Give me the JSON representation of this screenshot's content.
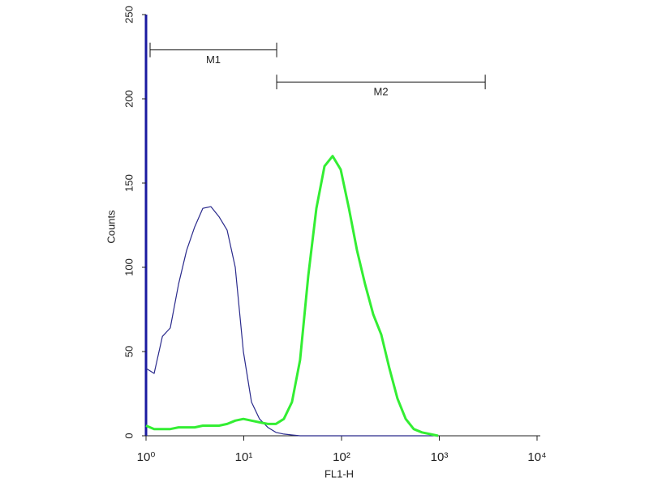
{
  "chart_data": {
    "type": "line",
    "x_label": "FL1-H",
    "y_label": "Counts",
    "x": [
      1,
      1.21,
      1.47,
      1.77,
      2.15,
      2.6,
      3.15,
      3.81,
      4.61,
      5.58,
      6.76,
      8.18,
      9.9,
      12,
      14.5,
      17.6,
      21.3,
      25.7,
      31.1,
      37.7,
      45.7,
      55.3,
      66.9,
      81,
      98.1,
      119,
      144,
      174,
      211,
      255,
      309,
      374,
      453,
      548,
      664,
      803,
      973
    ],
    "series": [
      {
        "color": "#2a2a8c",
        "values": [
          40,
          37,
          59,
          64,
          90,
          110,
          124,
          135,
          136,
          130,
          122,
          100,
          50,
          20,
          10,
          5,
          2,
          1,
          0.5,
          0,
          0,
          0,
          0,
          0,
          0,
          0,
          0,
          0,
          0,
          0,
          0,
          0,
          0,
          0,
          0,
          0,
          0
        ]
      },
      {
        "color": "#33ee33",
        "values": [
          6,
          4,
          4,
          4,
          5,
          5,
          5,
          6,
          6,
          6,
          7,
          9,
          10,
          9,
          8,
          7,
          7,
          10,
          20,
          45,
          95,
          135,
          160,
          166,
          158,
          135,
          110,
          90,
          72,
          60,
          40,
          22,
          10,
          4,
          2,
          1,
          0
        ]
      }
    ],
    "x_log": true,
    "xlim": [
      1,
      10000
    ],
    "xticks": [
      {
        "value": 1,
        "label": "10⁰"
      },
      {
        "value": 10,
        "label": "10¹"
      },
      {
        "value": 100,
        "label": "10²"
      },
      {
        "value": 1000,
        "label": "10³"
      },
      {
        "value": 10000,
        "label": "10⁴"
      }
    ],
    "ylim": [
      0,
      250
    ],
    "yticks": [
      0,
      50,
      100,
      150,
      200,
      250
    ],
    "markers": [
      {
        "label": "M1",
        "x": [
          1.1,
          21.7
        ],
        "y": 229
      },
      {
        "label": "M2",
        "x": [
          21.7,
          2950
        ],
        "y": 210
      }
    ]
  }
}
